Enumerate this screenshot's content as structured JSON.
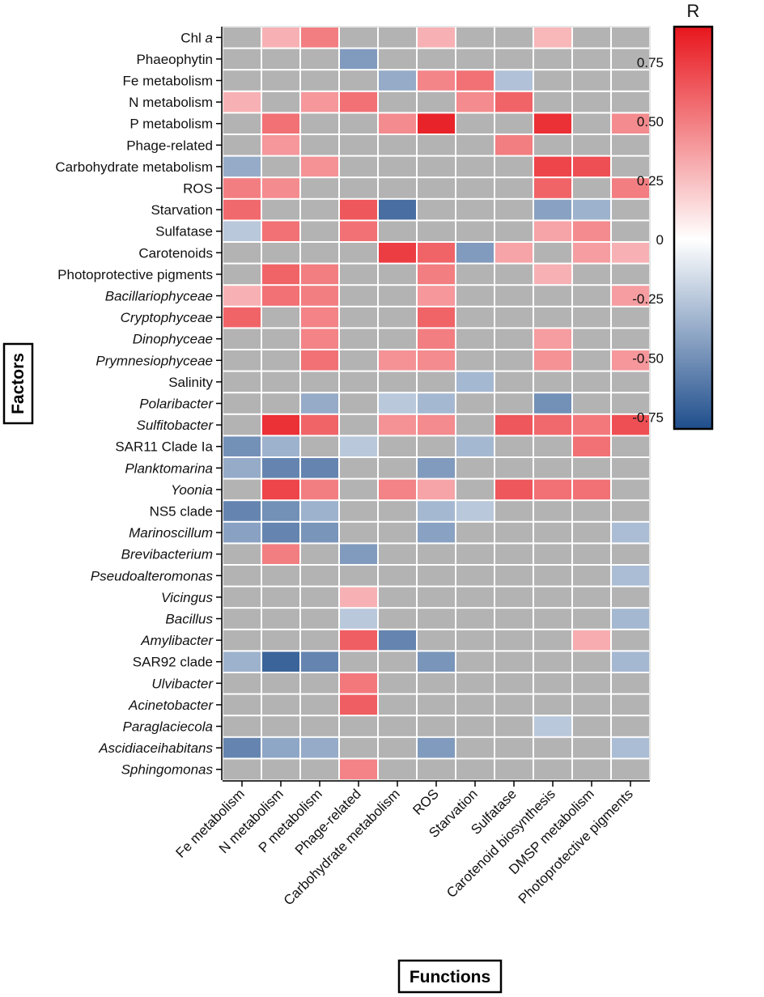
{
  "chart_data": {
    "type": "heatmap",
    "xlabel": "Functions",
    "ylabel": "Factors",
    "colorbar": {
      "title": "R",
      "range": [
        -0.8,
        0.9
      ],
      "ticks": [
        {
          "value": 0.75,
          "label": "0.75"
        },
        {
          "value": 0.5,
          "label": "0.50"
        },
        {
          "value": 0.25,
          "label": "0.25"
        },
        {
          "value": 0,
          "label": "0"
        },
        {
          "value": -0.25,
          "label": "-0.25"
        },
        {
          "value": -0.5,
          "label": "-0.50"
        },
        {
          "value": -0.75,
          "label": "-0.75"
        }
      ],
      "colors": {
        "negative": "#1f4e8c",
        "zero": "#ffffff",
        "positive": "#e8161d",
        "nonsignificant": "#b3b3b3",
        "grid": "#ffffff"
      }
    },
    "columns": [
      "Fe metabolism",
      "N metabolism",
      "P metabolism",
      "Phage-related",
      "Carbohydrate metabolism",
      "ROS",
      "Starvation",
      "Sulfatase",
      "Carotenoid biosynthesis",
      "DMSP metabolism",
      "Photoprotective pigments"
    ],
    "rows": [
      {
        "label": "Chl ",
        "label_suffix": "a",
        "italic": false,
        "values": [
          null,
          0.3,
          0.5,
          null,
          null,
          0.3,
          null,
          null,
          0.28,
          null,
          null
        ]
      },
      {
        "label": "Phaeophytin",
        "italic": false,
        "values": [
          null,
          null,
          null,
          -0.45,
          null,
          null,
          null,
          null,
          null,
          null,
          null
        ]
      },
      {
        "label": "Fe metabolism",
        "italic": false,
        "values": [
          null,
          null,
          null,
          null,
          -0.38,
          0.47,
          0.55,
          -0.28,
          null,
          null,
          null
        ]
      },
      {
        "label": "N metabolism",
        "italic": false,
        "values": [
          0.3,
          null,
          0.4,
          0.55,
          null,
          null,
          0.45,
          0.6,
          null,
          null,
          null
        ]
      },
      {
        "label": "P metabolism",
        "italic": false,
        "values": [
          null,
          0.55,
          null,
          null,
          0.45,
          0.85,
          null,
          null,
          0.8,
          null,
          0.45
        ]
      },
      {
        "label": "Phage-related",
        "italic": false,
        "values": [
          null,
          0.4,
          null,
          null,
          null,
          null,
          null,
          0.5,
          null,
          null,
          null
        ]
      },
      {
        "label": "Carbohydrate metabolism",
        "italic": false,
        "values": [
          -0.38,
          null,
          0.42,
          null,
          null,
          null,
          null,
          null,
          0.72,
          0.68,
          null
        ]
      },
      {
        "label": "ROS",
        "italic": false,
        "values": [
          0.5,
          0.45,
          null,
          null,
          null,
          null,
          null,
          null,
          0.6,
          null,
          0.5
        ]
      },
      {
        "label": "Starvation",
        "italic": false,
        "values": [
          0.58,
          null,
          null,
          0.65,
          -0.65,
          null,
          null,
          null,
          -0.42,
          -0.35,
          null
        ]
      },
      {
        "label": "Sulfatase",
        "italic": false,
        "values": [
          -0.25,
          0.55,
          null,
          0.55,
          null,
          null,
          null,
          null,
          0.35,
          0.45,
          null
        ]
      },
      {
        "label": "Carotenoids",
        "italic": false,
        "values": [
          null,
          null,
          null,
          null,
          0.75,
          0.6,
          -0.45,
          0.35,
          null,
          0.38,
          0.3
        ]
      },
      {
        "label": "Photoprotective pigments",
        "italic": false,
        "values": [
          null,
          0.6,
          0.5,
          null,
          null,
          0.5,
          null,
          null,
          0.3,
          null,
          null
        ]
      },
      {
        "label": "Bacillariophyceae",
        "italic": true,
        "values": [
          0.3,
          0.55,
          0.5,
          null,
          null,
          0.4,
          null,
          null,
          null,
          null,
          0.38
        ]
      },
      {
        "label": "Cryptophyceae",
        "italic": true,
        "values": [
          0.6,
          null,
          0.48,
          null,
          null,
          0.6,
          null,
          null,
          null,
          null,
          null
        ]
      },
      {
        "label": "Dinophyceae",
        "italic": true,
        "values": [
          null,
          null,
          0.48,
          null,
          null,
          0.5,
          null,
          null,
          0.38,
          null,
          null
        ]
      },
      {
        "label": "Prymnesiophyceae",
        "italic": true,
        "values": [
          null,
          null,
          0.55,
          null,
          0.42,
          0.45,
          null,
          null,
          0.42,
          null,
          0.4
        ]
      },
      {
        "label": "Salinity",
        "italic": false,
        "values": [
          null,
          null,
          null,
          null,
          null,
          null,
          -0.32,
          null,
          null,
          null,
          null
        ]
      },
      {
        "label": "Polaribacter",
        "italic": true,
        "values": [
          null,
          null,
          -0.38,
          null,
          -0.25,
          -0.32,
          null,
          null,
          -0.5,
          null,
          null
        ]
      },
      {
        "label": "Sulfitobacter",
        "italic": true,
        "values": [
          null,
          0.8,
          0.6,
          null,
          0.42,
          0.45,
          null,
          0.65,
          0.58,
          0.52,
          0.68
        ]
      },
      {
        "label": "SAR11 Clade Ia",
        "italic": false,
        "values": [
          -0.5,
          -0.35,
          null,
          -0.25,
          null,
          null,
          -0.32,
          null,
          null,
          0.55,
          null
        ]
      },
      {
        "label": "Planktomarina",
        "italic": true,
        "values": [
          -0.38,
          -0.55,
          -0.55,
          null,
          null,
          -0.45,
          null,
          null,
          null,
          null,
          null
        ]
      },
      {
        "label": "Yoonia",
        "italic": true,
        "values": [
          null,
          0.72,
          0.5,
          null,
          0.48,
          0.35,
          null,
          0.65,
          0.55,
          0.55,
          null
        ]
      },
      {
        "label": "NS5 clade",
        "italic": false,
        "values": [
          -0.55,
          -0.5,
          -0.35,
          null,
          null,
          -0.32,
          -0.25,
          null,
          null,
          null,
          null
        ]
      },
      {
        "label": "Marinoscillum",
        "italic": true,
        "values": [
          -0.42,
          -0.55,
          -0.48,
          null,
          null,
          -0.42,
          null,
          null,
          null,
          null,
          -0.3
        ]
      },
      {
        "label": "Brevibacterium",
        "italic": true,
        "values": [
          null,
          0.5,
          null,
          -0.45,
          null,
          null,
          null,
          null,
          null,
          null,
          null
        ]
      },
      {
        "label": "Pseudoalteromonas",
        "italic": true,
        "values": [
          null,
          null,
          null,
          null,
          null,
          null,
          null,
          null,
          null,
          null,
          -0.3
        ]
      },
      {
        "label": "Vicingus",
        "italic": true,
        "values": [
          null,
          null,
          null,
          0.3,
          null,
          null,
          null,
          null,
          null,
          null,
          null
        ]
      },
      {
        "label": "Bacillus",
        "italic": true,
        "values": [
          null,
          null,
          null,
          -0.25,
          null,
          null,
          null,
          null,
          null,
          null,
          -0.32
        ]
      },
      {
        "label": "Amylibacter",
        "italic": true,
        "values": [
          null,
          null,
          null,
          0.62,
          -0.55,
          null,
          null,
          null,
          null,
          0.32,
          null
        ]
      },
      {
        "label": "SAR92 clade",
        "italic": false,
        "values": [
          -0.35,
          -0.7,
          -0.55,
          null,
          null,
          -0.48,
          null,
          null,
          null,
          null,
          -0.32
        ]
      },
      {
        "label": "Ulvibacter",
        "italic": true,
        "values": [
          null,
          null,
          null,
          0.52,
          null,
          null,
          null,
          null,
          null,
          null,
          null
        ]
      },
      {
        "label": "Acinetobacter",
        "italic": true,
        "values": [
          null,
          null,
          null,
          0.62,
          null,
          null,
          null,
          null,
          null,
          null,
          null
        ]
      },
      {
        "label": "Paraglaciecola",
        "italic": true,
        "values": [
          null,
          null,
          null,
          null,
          null,
          null,
          null,
          null,
          -0.25,
          null,
          null
        ]
      },
      {
        "label": "Ascidiaceihabitans",
        "italic": true,
        "values": [
          -0.55,
          -0.4,
          -0.38,
          null,
          null,
          -0.45,
          null,
          null,
          null,
          null,
          -0.3
        ]
      },
      {
        "label": "Sphingomonas",
        "italic": true,
        "values": [
          null,
          null,
          null,
          0.48,
          null,
          null,
          null,
          null,
          null,
          null,
          null
        ]
      }
    ]
  }
}
